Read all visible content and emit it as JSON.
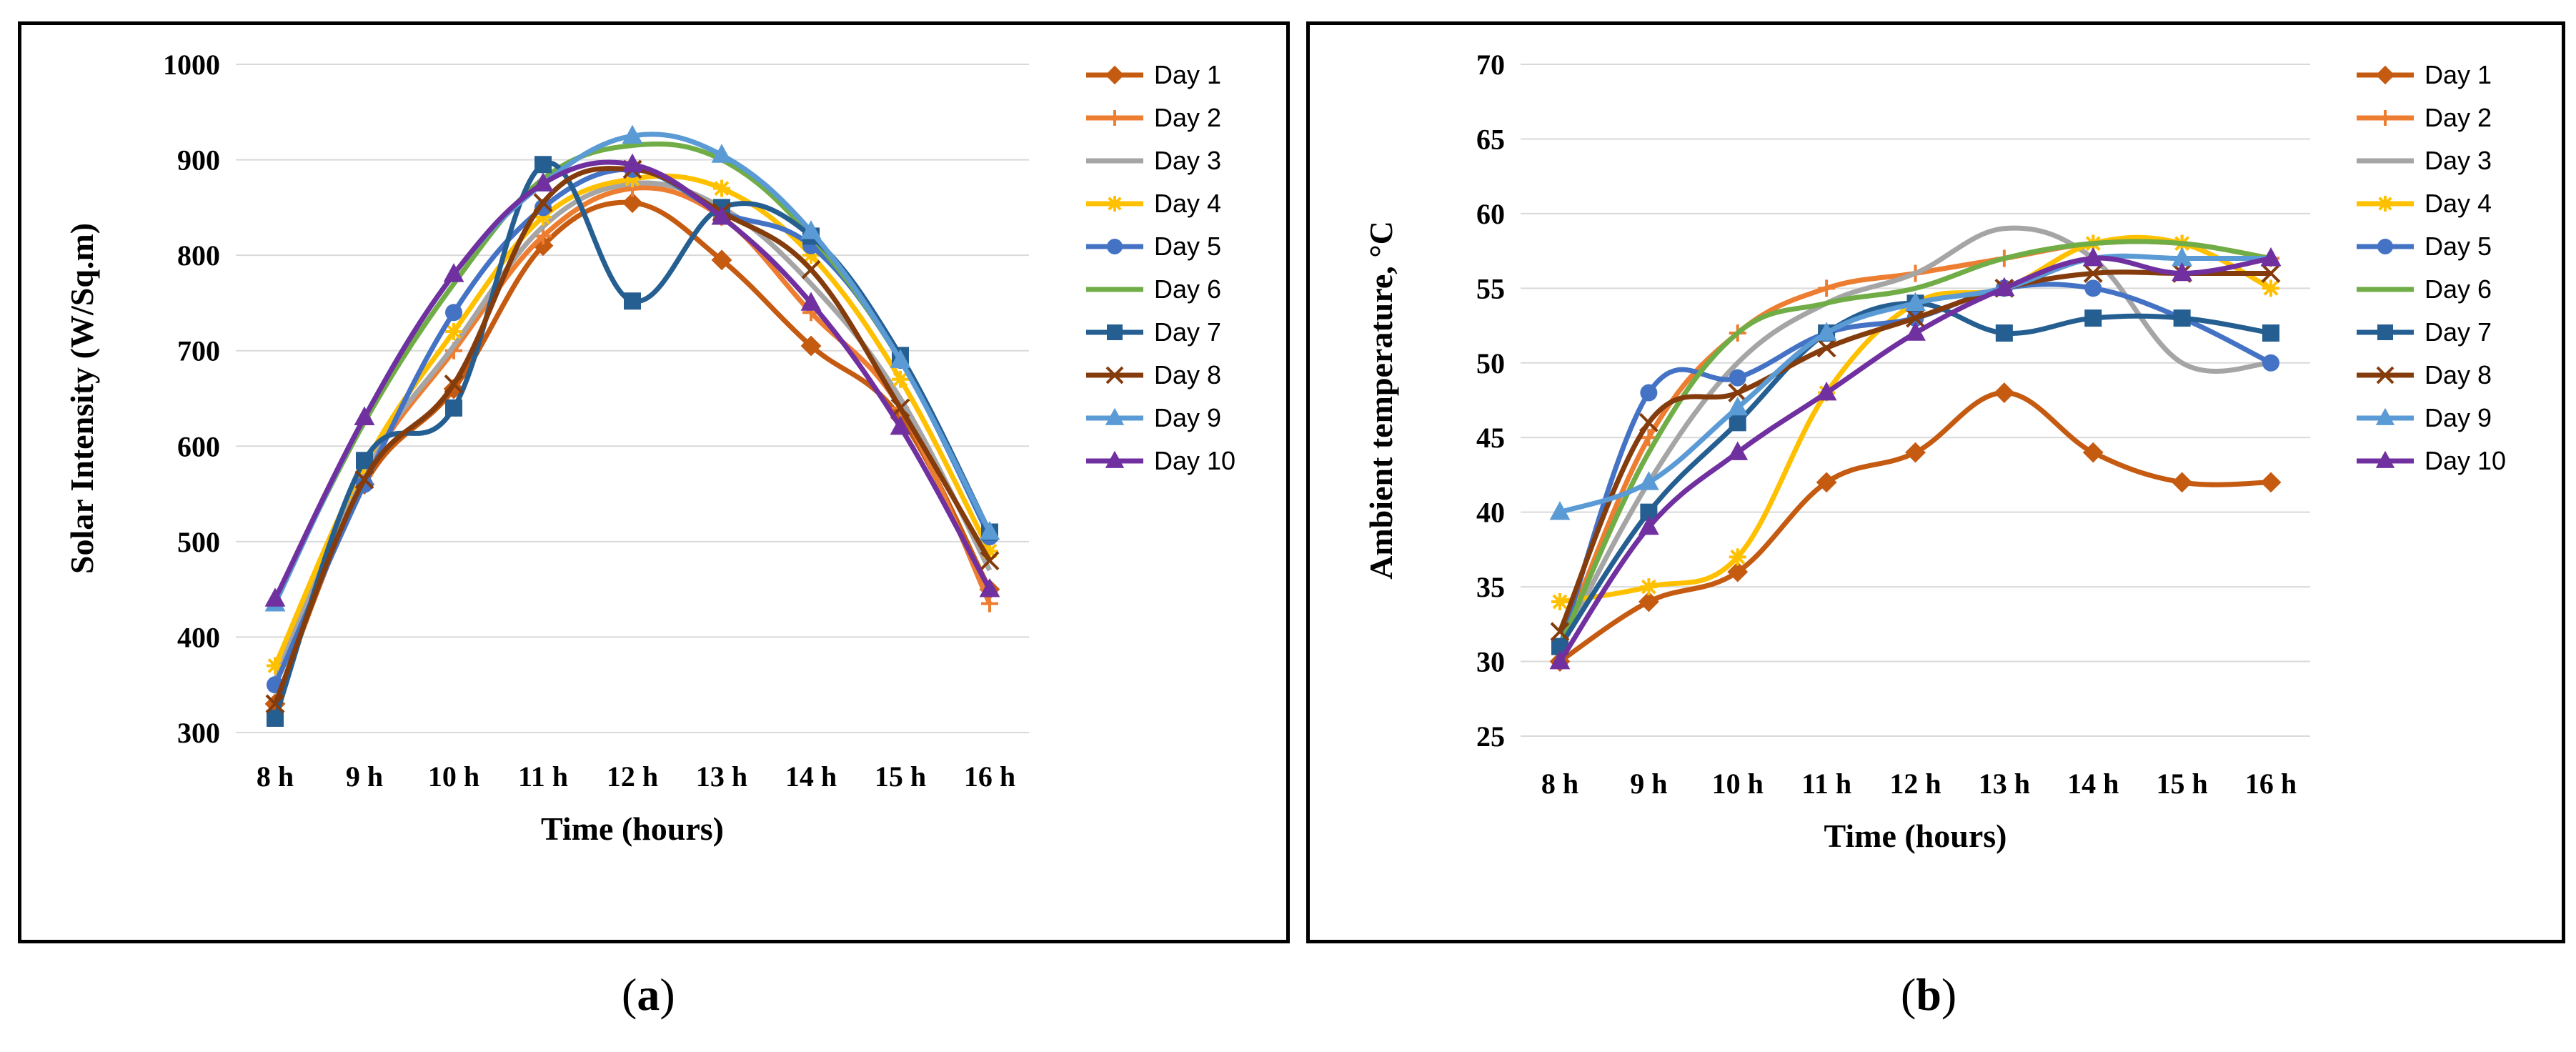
{
  "captions": {
    "a": "a",
    "b": "b"
  },
  "series_colors": [
    "#C55A11",
    "#ED7D31",
    "#A5A5A5",
    "#FFC000",
    "#4472C4",
    "#70AD47",
    "#255E91",
    "#843C0C",
    "#5B9BD5",
    "#7030A0"
  ],
  "chart_data": [
    {
      "type": "line",
      "xlabel": "Time (hours)",
      "ylabel": "Solar Intensity (W/Sq.m)",
      "categories": [
        "8 h",
        "9 h",
        "10 h",
        "11 h",
        "12 h",
        "13 h",
        "14 h",
        "15 h",
        "16 h"
      ],
      "ylim": [
        300,
        1000
      ],
      "yticks": [
        "300",
        "400",
        "500",
        "600",
        "700",
        "800",
        "900",
        "1000"
      ],
      "grid": true,
      "legend": "right",
      "series": [
        {
          "name": "Day 1",
          "values": [
            330,
            560,
            660,
            810,
            855,
            795,
            705,
            630,
            450
          ]
        },
        {
          "name": "Day 2",
          "values": [
            350,
            570,
            700,
            820,
            870,
            840,
            740,
            640,
            435
          ]
        },
        {
          "name": "Day 3",
          "values": [
            355,
            575,
            705,
            830,
            875,
            850,
            770,
            650,
            470
          ]
        },
        {
          "name": "Day 4",
          "values": [
            370,
            580,
            720,
            840,
            880,
            870,
            800,
            670,
            490
          ]
        },
        {
          "name": "Day 5",
          "values": [
            350,
            560,
            740,
            850,
            890,
            845,
            810,
            690,
            505
          ]
        },
        {
          "name": "Day 6",
          "values": [
            440,
            625,
            770,
            880,
            915,
            900,
            820,
            690,
            510
          ]
        },
        {
          "name": "Day 7",
          "values": [
            315,
            585,
            640,
            895,
            752,
            850,
            820,
            695,
            510
          ]
        },
        {
          "name": "Day 8",
          "values": [
            330,
            565,
            665,
            855,
            890,
            845,
            785,
            640,
            480
          ]
        },
        {
          "name": "Day 9",
          "values": [
            435,
            630,
            780,
            875,
            925,
            905,
            825,
            690,
            510
          ]
        },
        {
          "name": "Day 10",
          "values": [
            440,
            630,
            780,
            875,
            895,
            840,
            750,
            620,
            450
          ]
        }
      ]
    },
    {
      "type": "line",
      "xlabel": "Time (hours)",
      "ylabel": "Ambient temperature, °C",
      "categories": [
        "8 h",
        "9 h",
        "10 h",
        "11 h",
        "12 h",
        "13 h",
        "14 h",
        "15 h",
        "16 h"
      ],
      "ylim": [
        25,
        70
      ],
      "yticks": [
        "25",
        "30",
        "35",
        "40",
        "45",
        "50",
        "55",
        "60",
        "65",
        "70"
      ],
      "grid": true,
      "legend": "right",
      "series": [
        {
          "name": "Day 1",
          "values": [
            30,
            34,
            36,
            42,
            44,
            48,
            44,
            42,
            42
          ]
        },
        {
          "name": "Day 2",
          "values": [
            31,
            45,
            52,
            55,
            56,
            57,
            58,
            58,
            57
          ]
        },
        {
          "name": "Day 3",
          "values": [
            31,
            42,
            50,
            54,
            56,
            59,
            57,
            50,
            50
          ]
        },
        {
          "name": "Day 4",
          "values": [
            34,
            35,
            37,
            48,
            54,
            55,
            58,
            58,
            55
          ]
        },
        {
          "name": "Day 5",
          "values": [
            31,
            48,
            49,
            52,
            53,
            55,
            55,
            53,
            50
          ]
        },
        {
          "name": "Day 6",
          "values": [
            31,
            44,
            52,
            54,
            55,
            57,
            58,
            58,
            57
          ]
        },
        {
          "name": "Day 7",
          "values": [
            31,
            40,
            46,
            52,
            54,
            52,
            53,
            53,
            52
          ]
        },
        {
          "name": "Day 8",
          "values": [
            32,
            46,
            48,
            51,
            53,
            55,
            56,
            56,
            56
          ]
        },
        {
          "name": "Day 9",
          "values": [
            40,
            42,
            47,
            52,
            54,
            55,
            57,
            57,
            57
          ]
        },
        {
          "name": "Day 10",
          "values": [
            30,
            39,
            44,
            48,
            52,
            55,
            57,
            56,
            57
          ]
        }
      ]
    }
  ],
  "markers": [
    "diamond",
    "plus",
    "none",
    "star",
    "circle",
    "none",
    "square",
    "x",
    "triangle",
    "triangle"
  ]
}
